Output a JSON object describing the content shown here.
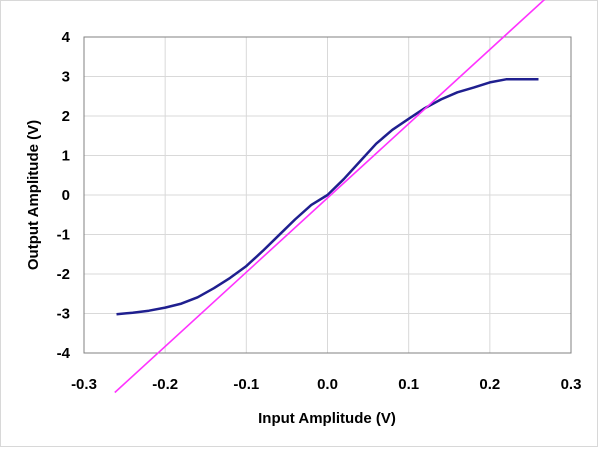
{
  "chart_data": {
    "type": "line",
    "title": "",
    "xlabel": "Input Amplitude (V)",
    "ylabel": "Output Amplitude (V)",
    "xlim": [
      -0.3,
      0.3
    ],
    "ylim": [
      -4,
      4
    ],
    "x_ticks": [
      -0.3,
      -0.2,
      -0.1,
      0.0,
      0.1,
      0.2,
      0.3
    ],
    "x_tick_labels": [
      "-0.3",
      "-0.2",
      "-0.1",
      "0.0",
      "0.1",
      "0.2",
      "0.3"
    ],
    "y_ticks": [
      -4,
      -3,
      -2,
      -1,
      0,
      1,
      2,
      3,
      4
    ],
    "y_tick_labels": [
      "-4",
      "-3",
      "-2",
      "-1",
      "0",
      "1",
      "2",
      "3",
      "4"
    ],
    "grid": true,
    "legend": "none",
    "colors": {
      "plot_border": "#808080",
      "grid": "#d9d9d9"
    },
    "series": [
      {
        "color": "#1f1f8f",
        "x": [
          -0.26,
          -0.24,
          -0.22,
          -0.2,
          -0.18,
          -0.16,
          -0.14,
          -0.12,
          -0.1,
          -0.08,
          -0.06,
          -0.04,
          -0.02,
          0.0,
          0.02,
          0.04,
          0.06,
          0.08,
          0.1,
          0.12,
          0.14,
          0.16,
          0.18,
          0.2,
          0.22,
          0.24,
          0.26
        ],
        "y": [
          -3.02,
          -2.98,
          -2.93,
          -2.85,
          -2.75,
          -2.59,
          -2.36,
          -2.1,
          -1.8,
          -1.42,
          -1.02,
          -0.62,
          -0.25,
          0.0,
          0.4,
          0.85,
          1.3,
          1.65,
          1.93,
          2.2,
          2.42,
          2.6,
          2.72,
          2.85,
          2.93,
          2.93,
          2.93
        ]
      },
      {
        "color": "#ff33ff",
        "x": [
          -0.262,
          0.27
        ],
        "y": [
          -5.0,
          5.0
        ]
      }
    ]
  }
}
